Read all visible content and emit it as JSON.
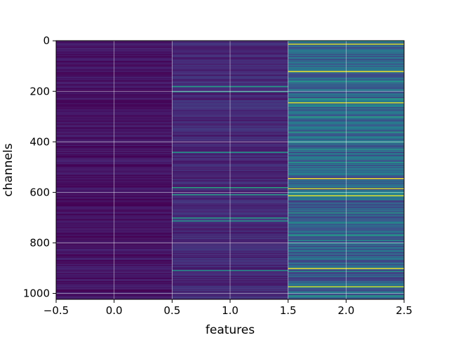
{
  "chart_data": {
    "type": "heatmap",
    "xlabel": "features",
    "ylabel": "channels",
    "xlim": [
      -0.5,
      2.5
    ],
    "ylim": [
      1023.5,
      -0.5
    ],
    "x_ticks": [
      -0.5,
      0.0,
      0.5,
      1.0,
      1.5,
      2.0,
      2.5
    ],
    "x_tick_labels": [
      "−0.5",
      "0.0",
      "0.5",
      "1.0",
      "1.5",
      "2.0",
      "2.5"
    ],
    "y_ticks": [
      0,
      200,
      400,
      600,
      800,
      1000
    ],
    "y_tick_labels": [
      "0",
      "200",
      "400",
      "600",
      "800",
      "1000"
    ],
    "n_rows": 1024,
    "n_cols": 3,
    "colormap": "viridis",
    "grid": true,
    "column_mean_level": [
      0.05,
      0.12,
      0.32
    ],
    "highlight_rows": {
      "col0": [],
      "col1": [
        180,
        200,
        440,
        580,
        610,
        700,
        715,
        910
      ],
      "col2": [
        0,
        15,
        120,
        160,
        230,
        245,
        300,
        360,
        400,
        430,
        480,
        545,
        585,
        600,
        615,
        680,
        720,
        770,
        790,
        800,
        900,
        915,
        975,
        1010
      ]
    },
    "bright_rows": {
      "col1": [],
      "col2": [
        15,
        120,
        245,
        545,
        585,
        615,
        900,
        975
      ]
    }
  }
}
